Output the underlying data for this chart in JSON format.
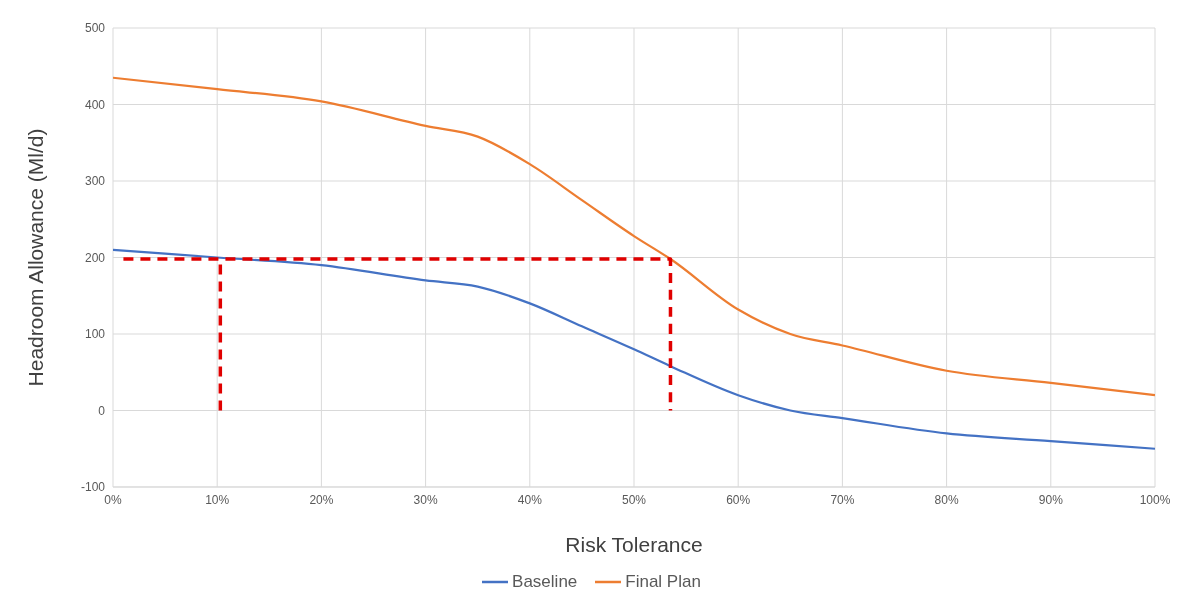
{
  "chart_data": {
    "type": "line",
    "xlabel": "Risk Tolerance",
    "ylabel": "Headroom Allowance (Ml/d)",
    "xlim": [
      0,
      100
    ],
    "xticks": [
      {
        "value": 0,
        "label": "0%"
      },
      {
        "value": 10,
        "label": "10%"
      },
      {
        "value": 20,
        "label": "20%"
      },
      {
        "value": 30,
        "label": "30%"
      },
      {
        "value": 40,
        "label": "40%"
      },
      {
        "value": 50,
        "label": "50%"
      },
      {
        "value": 60,
        "label": "60%"
      },
      {
        "value": 70,
        "label": "70%"
      },
      {
        "value": 80,
        "label": "80%"
      },
      {
        "value": 90,
        "label": "90%"
      },
      {
        "value": 100,
        "label": "100%"
      }
    ],
    "ylim": [
      -100,
      500
    ],
    "yticks": [
      -100,
      0,
      100,
      200,
      300,
      400,
      500
    ],
    "grid": true,
    "legend": "bottom",
    "marker": "none",
    "line_style": "solid",
    "series": [
      {
        "name": "Baseline",
        "color": "#4472c4",
        "x": [
          0,
          10,
          20,
          30,
          35,
          40,
          45,
          50,
          53.5,
          60,
          65,
          70,
          80,
          90,
          100
        ],
        "values": [
          210,
          200,
          190,
          170,
          162,
          140,
          110,
          80,
          58,
          20,
          0,
          -10,
          -30,
          -40,
          -50
        ]
      },
      {
        "name": "Final Plan",
        "color": "#ed7d31",
        "x": [
          0,
          10,
          20,
          30,
          35,
          40,
          45,
          50,
          53.5,
          60,
          65,
          70,
          80,
          90,
          100
        ],
        "values": [
          435,
          420,
          404,
          372,
          358,
          322,
          275,
          228,
          198,
          132,
          100,
          85,
          52,
          36,
          20
        ]
      },
      {
        "color": "#e00000",
        "line_style": "dashed",
        "x": [
          10.3,
          10.3
        ],
        "values": [
          0,
          198
        ]
      },
      {
        "color": "#e00000",
        "line_style": "dashed",
        "x": [
          1,
          53.5,
          53.5
        ],
        "values": [
          198,
          198,
          0
        ]
      }
    ]
  }
}
